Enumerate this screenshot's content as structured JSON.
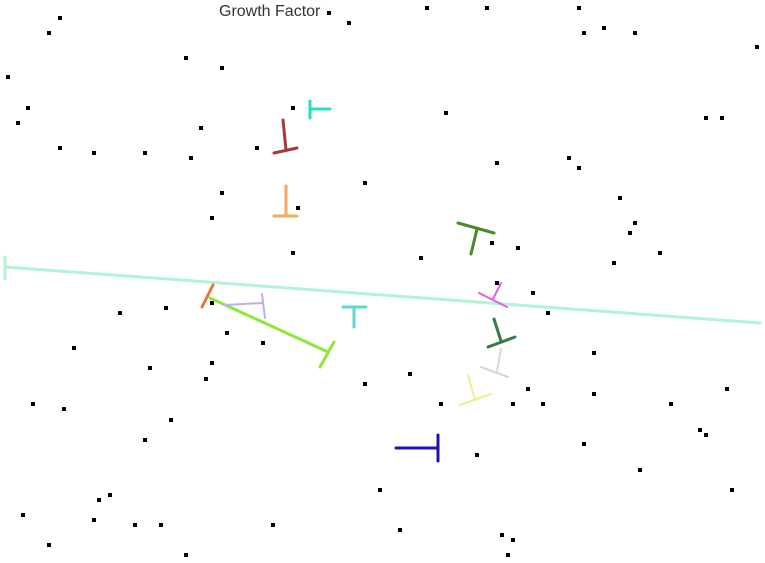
{
  "title": "Growth Factor",
  "colors": {
    "background": "#ffffff",
    "dots": "#000000",
    "long_line": "#b2f5d6",
    "lime_segment": "#8ee83a",
    "orange_tick": "#e07a3c",
    "lavender_glyph": "#b9b2f0",
    "teal_glyph": "#5ed8d0",
    "cyan_glyph": "#22e0c4",
    "maroon_glyph": "#a43a3a",
    "peach_glyph": "#f5a860",
    "olive_glyph": "#4a8a2a",
    "magenta_glyph": "#e25ee8",
    "darkgreen_glyph": "#3a7a4a",
    "pale_glyph": "#d0dcd0",
    "yellow_glyph": "#eef08a",
    "navy_glyph": "#1a14b8"
  }
}
